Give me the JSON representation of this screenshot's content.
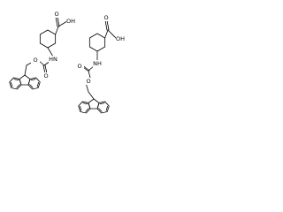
{
  "molecules": [
    {
      "labels": [
        "O",
        "OH",
        "HN",
        "O",
        "O"
      ]
    },
    {
      "labels": [
        "O",
        "OH",
        "NH",
        "O",
        "O"
      ]
    }
  ]
}
